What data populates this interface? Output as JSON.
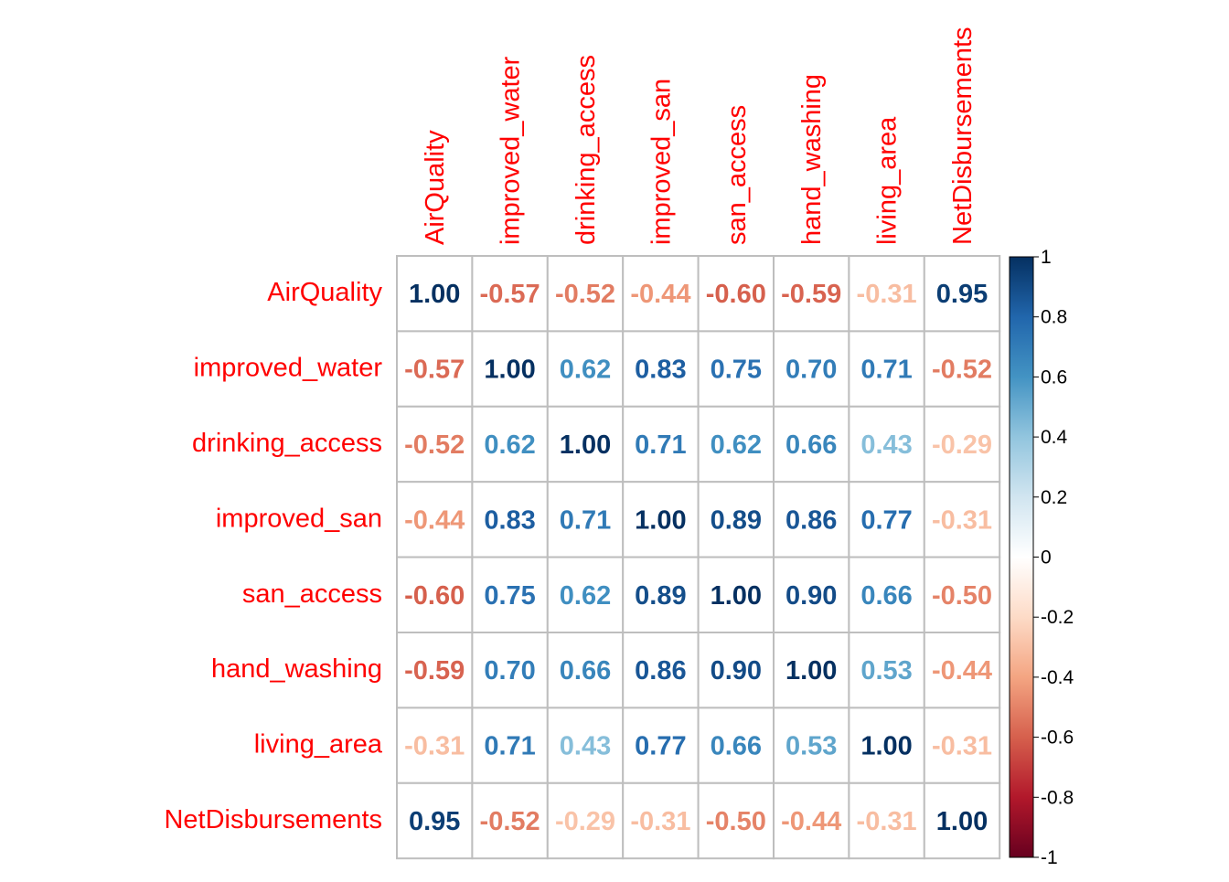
{
  "chart_data": {
    "type": "heatmap",
    "variables": [
      "AirQuality",
      "improved_water",
      "drinking_access",
      "improved_san",
      "san_access",
      "hand_washing",
      "living_area",
      "NetDisbursements"
    ],
    "matrix": [
      [
        1.0,
        -0.57,
        -0.52,
        -0.44,
        -0.6,
        -0.59,
        -0.31,
        0.95
      ],
      [
        -0.57,
        1.0,
        0.62,
        0.83,
        0.75,
        0.7,
        0.71,
        -0.52
      ],
      [
        -0.52,
        0.62,
        1.0,
        0.71,
        0.62,
        0.66,
        0.43,
        -0.29
      ],
      [
        -0.44,
        0.83,
        0.71,
        1.0,
        0.89,
        0.86,
        0.77,
        -0.31
      ],
      [
        -0.6,
        0.75,
        0.62,
        0.89,
        1.0,
        0.9,
        0.66,
        -0.5
      ],
      [
        -0.59,
        0.7,
        0.66,
        0.86,
        0.9,
        1.0,
        0.53,
        -0.44
      ],
      [
        -0.31,
        0.71,
        0.43,
        0.77,
        0.66,
        0.53,
        1.0,
        -0.31
      ],
      [
        0.95,
        -0.52,
        -0.29,
        -0.31,
        -0.5,
        -0.44,
        -0.31,
        1.0
      ]
    ],
    "color_scale": {
      "range": [
        -1,
        1
      ],
      "ticks": [
        1,
        0.8,
        0.6,
        0.4,
        0.2,
        0,
        -0.2,
        -0.4,
        -0.6,
        -0.8,
        -1
      ],
      "tick_labels": [
        "1",
        "0.8",
        "0.6",
        "0.4",
        "0.2",
        "0",
        "-0.2",
        "-0.4",
        "-0.6",
        "-0.8",
        "-1"
      ],
      "stops": [
        {
          "value": -1.0,
          "color": "#67001F"
        },
        {
          "value": -0.8,
          "color": "#B2182B"
        },
        {
          "value": -0.6,
          "color": "#D6604D"
        },
        {
          "value": -0.4,
          "color": "#F4A582"
        },
        {
          "value": -0.2,
          "color": "#FDDBC7"
        },
        {
          "value": 0.0,
          "color": "#FFFFFF"
        },
        {
          "value": 0.2,
          "color": "#D1E5F0"
        },
        {
          "value": 0.4,
          "color": "#92C5DE"
        },
        {
          "value": 0.6,
          "color": "#4393C3"
        },
        {
          "value": 0.8,
          "color": "#2166AC"
        },
        {
          "value": 1.0,
          "color": "#053061"
        }
      ]
    },
    "legend": "right",
    "grid": true,
    "label_color": "#FF0000",
    "grid_color": "#BEBEBE",
    "value_format": "2 decimals"
  }
}
